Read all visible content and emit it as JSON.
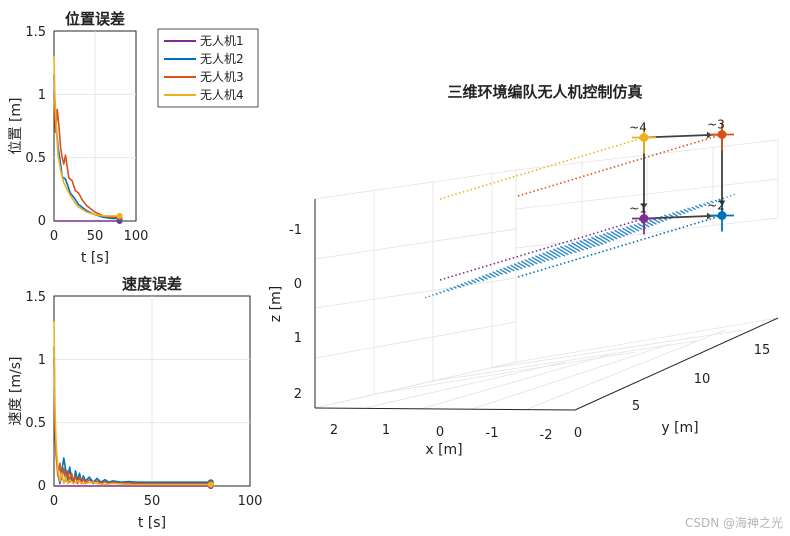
{
  "watermark": "CSDN @海神之光",
  "colors": {
    "uav1": "#7e2f8e",
    "uav2": "#0072bd",
    "uav3": "#d95319",
    "uav4": "#edb120",
    "grid": "#e3e3e3",
    "axis": "#262626",
    "arrow": "#404040"
  },
  "chart_data": [
    {
      "id": "position-error",
      "type": "line",
      "title": "位置误差",
      "xlabel": "t [s]",
      "ylabel": "位置 [m]",
      "xlim": [
        0,
        100
      ],
      "ylim": [
        0,
        1.5
      ],
      "xticks": [
        "0",
        "50",
        "100"
      ],
      "yticks": [
        "0",
        "0.5",
        "1",
        "1.5"
      ],
      "grid": true,
      "legend_position": "right-outside",
      "series": [
        {
          "name": "无人机1",
          "color": "uav1",
          "x": [
            0,
            80
          ],
          "y": [
            0,
            0
          ]
        },
        {
          "name": "无人机2",
          "color": "uav2",
          "x": [
            0,
            1,
            3,
            5,
            8,
            10,
            14,
            20,
            25,
            30,
            40,
            50,
            60,
            70,
            80
          ],
          "y": [
            1.15,
            0.95,
            0.72,
            0.58,
            0.45,
            0.35,
            0.33,
            0.22,
            0.18,
            0.13,
            0.08,
            0.05,
            0.03,
            0.02,
            0.02
          ]
        },
        {
          "name": "无人机3",
          "color": "uav3",
          "x": [
            0,
            1,
            2,
            4,
            6,
            8,
            10,
            12,
            14,
            18,
            22,
            26,
            30,
            35,
            40,
            50,
            60,
            70,
            80
          ],
          "y": [
            1.0,
            0.85,
            0.7,
            0.88,
            0.75,
            0.58,
            0.5,
            0.45,
            0.52,
            0.34,
            0.32,
            0.24,
            0.22,
            0.16,
            0.12,
            0.07,
            0.04,
            0.03,
            0.03
          ]
        },
        {
          "name": "无人机4",
          "color": "uav4",
          "x": [
            0,
            1,
            3,
            5,
            8,
            12,
            16,
            20,
            25,
            30,
            40,
            50,
            60,
            70,
            80
          ],
          "y": [
            1.3,
            1.0,
            0.7,
            0.52,
            0.4,
            0.3,
            0.25,
            0.2,
            0.15,
            0.11,
            0.07,
            0.05,
            0.04,
            0.04,
            0.04
          ]
        }
      ]
    },
    {
      "id": "velocity-error",
      "type": "line",
      "title": "速度误差",
      "xlabel": "t [s]",
      "ylabel": "速度 [m/s]",
      "xlim": [
        0,
        100
      ],
      "ylim": [
        0,
        1.5
      ],
      "xticks": [
        "0",
        "50",
        "100"
      ],
      "yticks": [
        "0",
        "0.5",
        "1",
        "1.5"
      ],
      "grid": true,
      "series": [
        {
          "name": "无人机1",
          "color": "uav1",
          "x": [
            0,
            80
          ],
          "y": [
            0,
            0
          ]
        },
        {
          "name": "无人机2",
          "color": "uav2",
          "x": [
            0,
            0.5,
            1,
            2,
            3,
            4,
            5,
            6,
            7,
            8,
            9,
            10,
            11,
            12,
            13,
            14,
            15,
            16,
            18,
            20,
            22,
            24,
            26,
            28,
            30,
            34,
            38,
            42,
            46,
            50,
            60,
            70,
            80
          ],
          "y": [
            1.1,
            0.5,
            0.3,
            0.1,
            0.02,
            0.12,
            0.22,
            0.12,
            0.03,
            0.15,
            0.05,
            0.02,
            0.12,
            0.04,
            0.1,
            0.03,
            0.08,
            0.04,
            0.07,
            0.03,
            0.06,
            0.03,
            0.05,
            0.03,
            0.04,
            0.03,
            0.035,
            0.03,
            0.03,
            0.03,
            0.03,
            0.03,
            0.03
          ]
        },
        {
          "name": "无人机3",
          "color": "uav3",
          "x": [
            0,
            0.5,
            1,
            2,
            3,
            4,
            5,
            6,
            7,
            8,
            9,
            10,
            11,
            12,
            13,
            14,
            15,
            16,
            18,
            20,
            22,
            24,
            26,
            28,
            30,
            34,
            38,
            42,
            46,
            50,
            60,
            70,
            80
          ],
          "y": [
            1.0,
            0.45,
            0.25,
            0.08,
            0.18,
            0.05,
            0.14,
            0.04,
            0.12,
            0.03,
            0.1,
            0.03,
            0.08,
            0.02,
            0.07,
            0.02,
            0.06,
            0.02,
            0.05,
            0.02,
            0.04,
            0.02,
            0.035,
            0.02,
            0.03,
            0.02,
            0.025,
            0.02,
            0.02,
            0.02,
            0.02,
            0.02,
            0.02
          ]
        },
        {
          "name": "无人机4",
          "color": "uav4",
          "x": [
            0,
            0.5,
            1,
            2,
            3,
            4,
            5,
            6,
            7,
            8,
            10,
            12,
            15,
            20,
            25,
            30,
            40,
            50,
            60,
            70,
            80
          ],
          "y": [
            1.3,
            0.6,
            0.35,
            0.12,
            0.04,
            0.1,
            0.02,
            0.07,
            0.02,
            0.05,
            0.02,
            0.04,
            0.02,
            0.03,
            0.01,
            0.02,
            0.01,
            0.01,
            0.01,
            0.01,
            0.01
          ]
        }
      ]
    },
    {
      "id": "formation-3d",
      "type": "scatter",
      "title": "三维环境编队无人机控制仿真",
      "xlabel": "x [m]",
      "ylabel": "y [m]",
      "zlabel": "z [m]",
      "xlim": [
        -2,
        2
      ],
      "ylim": [
        0,
        17
      ],
      "zlim": [
        -1.5,
        2.5
      ],
      "z_reversed": true,
      "xticks": [
        "2",
        "1",
        "0",
        "-1",
        "-2"
      ],
      "yticks": [
        "0",
        "5",
        "10",
        "15"
      ],
      "zticks": [
        "-1",
        "0",
        "1",
        "2"
      ],
      "grid": true,
      "uavs": [
        {
          "label": "~1",
          "color": "uav1",
          "x": 0,
          "y": 15,
          "z": 0
        },
        {
          "label": "~2",
          "color": "uav2",
          "x": -1.5,
          "y": 15,
          "z": 0
        },
        {
          "label": "~3",
          "color": "uav3",
          "x": -1.5,
          "y": 15,
          "z": -1.5
        },
        {
          "label": "~4",
          "color": "uav4",
          "x": 0,
          "y": 15,
          "z": -1.5
        }
      ]
    }
  ]
}
